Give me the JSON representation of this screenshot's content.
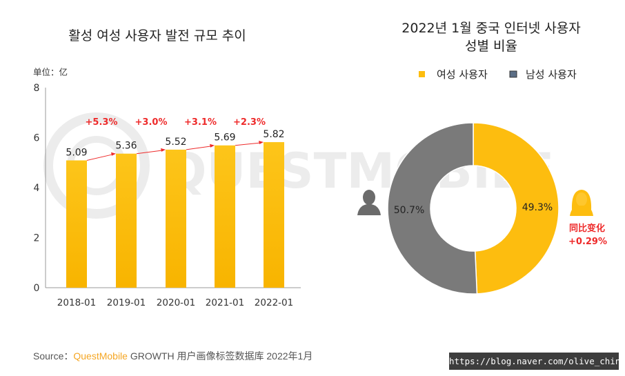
{
  "colors": {
    "bar": "#fdbd0f",
    "female": "#fdbd0f",
    "male": "#7a7a7a",
    "growth": "#ee2a2a",
    "text": "#333333"
  },
  "charts": [
    {
      "title": "활성 여성 사용자 발전 규모 추이",
      "unit_label": "单位：亿",
      "growth_labels": [
        "+5.3%",
        "+3.0%",
        "+3.1%",
        "+2.3%"
      ]
    },
    {
      "title_line1": "2022년 1월 중국 인터넷 사용자",
      "title_line2": "성별 비율",
      "change_label": "同比变化",
      "change_value": "+0.29%",
      "female_icon": "female-user-icon",
      "male_icon": "male-user-icon"
    }
  ],
  "chart_data": [
    {
      "type": "bar",
      "categories": [
        "2018-01",
        "2019-01",
        "2020-01",
        "2021-01",
        "2022-01"
      ],
      "values": [
        5.09,
        5.36,
        5.52,
        5.69,
        5.82
      ],
      "value_labels": [
        "5.09",
        "5.36",
        "5.52",
        "5.69",
        "5.82"
      ],
      "title": "활성 여성 사용자 발전 규모 추이",
      "ylim": [
        0,
        8
      ],
      "yticks": [
        0,
        2,
        4,
        6,
        8
      ],
      "grid": false
    },
    {
      "type": "pie",
      "labels": [
        "여성 사용자",
        "남성 사용자"
      ],
      "values": [
        49.3,
        50.7
      ],
      "value_labels": [
        "49.3%",
        "50.7%"
      ],
      "title": "2022년 1월 중국 인터넷 사용자 성별 비율",
      "legend_position": "top"
    }
  ],
  "source": {
    "prefix": "Source：",
    "brand": "QuestMobile",
    "suffix": " GROWTH 用户画像标签数据库 2022年1月"
  },
  "url_badge": "https://blog.naver.com/olive_china",
  "watermark_text": "QUESTMOBILE"
}
